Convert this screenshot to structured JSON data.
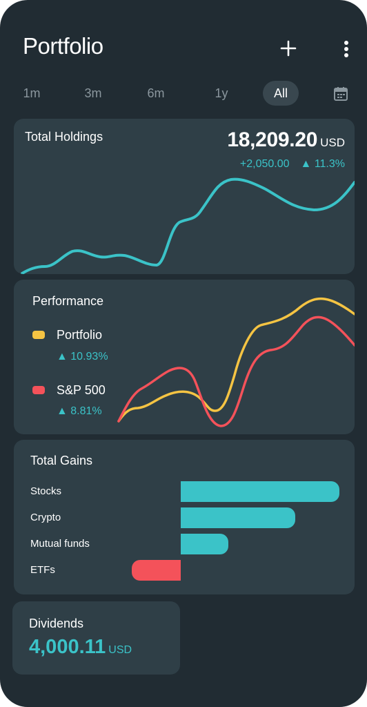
{
  "header": {
    "title": "Portfolio",
    "add_icon": "plus-icon",
    "menu_icon": "more-vertical-icon"
  },
  "range_tabs": {
    "items": [
      {
        "label": "1m",
        "active": false
      },
      {
        "label": "3m",
        "active": false
      },
      {
        "label": "6m",
        "active": false
      },
      {
        "label": "1y",
        "active": false
      },
      {
        "label": "All",
        "active": true
      }
    ],
    "calendar_icon": "calendar-icon"
  },
  "holdings": {
    "title": "Total Holdings",
    "value": "18,209.20",
    "currency": "USD",
    "change_abs": "+2,050.00",
    "change_pct": "▲ 11.3%"
  },
  "performance": {
    "title": "Performance",
    "series": [
      {
        "label": "Portfolio",
        "change": "▲ 10.93%",
        "color": "#f5c443"
      },
      {
        "label": "S&P 500",
        "change": "▲ 8.81%",
        "color": "#f4525a"
      }
    ]
  },
  "gains": {
    "title": "Total Gains",
    "items": [
      {
        "label": "Stocks",
        "value": 1.0
      },
      {
        "label": "Crypto",
        "value": 0.72
      },
      {
        "label": "Mutual funds",
        "value": 0.3
      },
      {
        "label": "ETFs",
        "value": -0.31
      }
    ],
    "positive_color": "#3bc3c8",
    "negative_color": "#f4525a"
  },
  "dividends": {
    "title": "Dividends",
    "value": "4,000.11",
    "currency": "USD"
  },
  "colors": {
    "background": "#212c33",
    "card": "#2f3f47",
    "accent": "#3bc3c8",
    "text": "#ffffff",
    "muted": "#8b979e"
  }
}
